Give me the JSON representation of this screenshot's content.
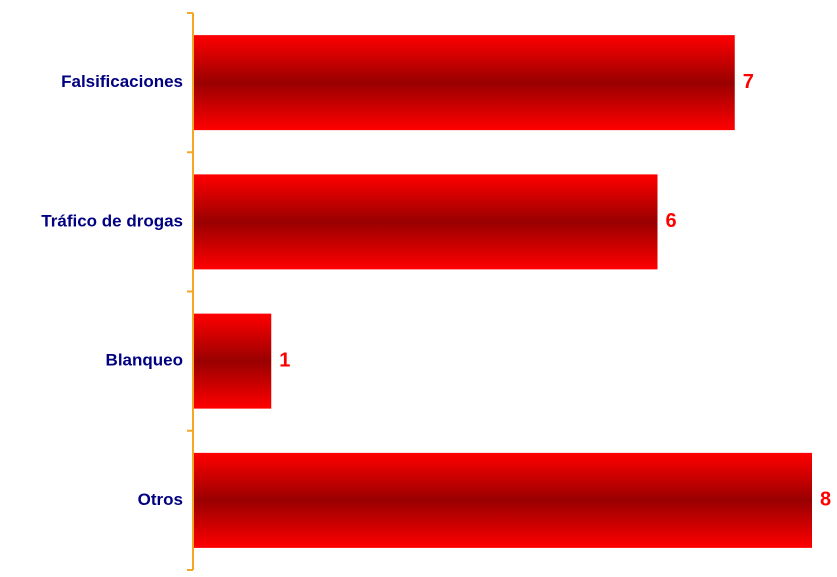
{
  "chart_data": {
    "type": "bar",
    "orientation": "horizontal",
    "categories": [
      "Falsificaciones",
      "Tráfico de drogas",
      "Blanqueo",
      "Otros"
    ],
    "values": [
      7,
      6,
      1,
      8
    ],
    "value_labels": [
      "7",
      "6",
      "1",
      "8"
    ],
    "title": "",
    "xlabel": "",
    "ylabel": "",
    "xlim": [
      0,
      8
    ],
    "grid": false,
    "legend": "none"
  },
  "colors": {
    "bar_edge": "#ff0000",
    "bar_center": "#990000",
    "category_text": "#000080",
    "value_text": "#ff0000",
    "axis": "#f5a623"
  }
}
